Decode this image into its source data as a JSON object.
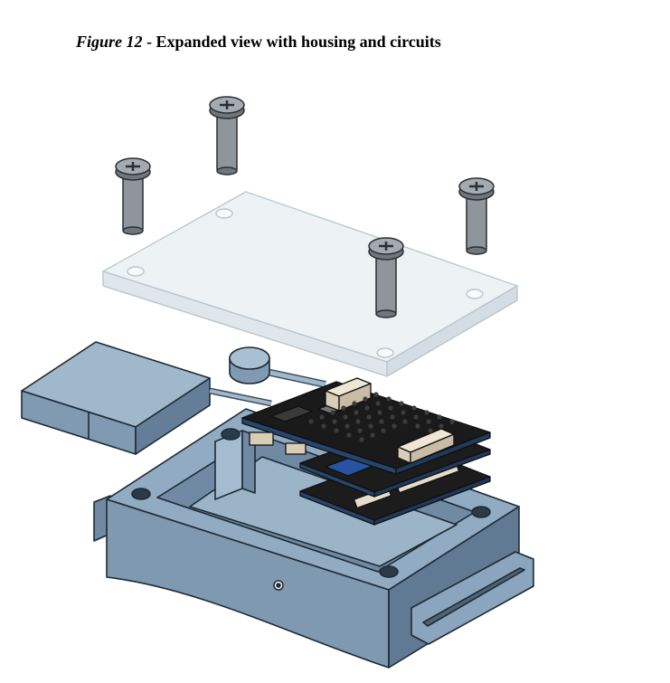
{
  "caption": {
    "figure_label": "Figure 12",
    "separator": " - ",
    "text": "Expanded view with housing and circuits"
  },
  "colors": {
    "housing": "#8aa5bd",
    "housing_dark": "#5e7890",
    "housing_light": "#a9c0d3",
    "lid": "#edf2f5",
    "pcb": "#1b1b1b",
    "pcb_edge": "#27466f",
    "connector": "#e6dccb",
    "screw": "#8e969c"
  }
}
